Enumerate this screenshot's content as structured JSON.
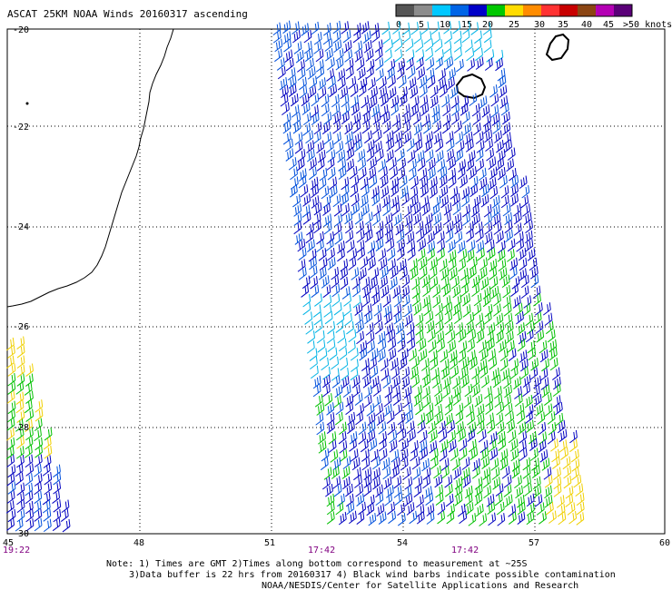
{
  "title": "ASCAT 25KM NOAA Winds 20160317 ascending",
  "legend": {
    "ticks": [
      "0",
      "5",
      "10",
      "15",
      "20",
      "25",
      "30",
      "35",
      "40",
      "45",
      ">50 knots"
    ],
    "colors": [
      "#555555",
      "#8c8c8c",
      "#00c8ff",
      "#0064e6",
      "#0000c8",
      "#00c800",
      "#ffdc00",
      "#ff8c00",
      "#ff3232",
      "#c80000",
      "#8b4513",
      "#b400b4",
      "#5a0078"
    ]
  },
  "axes": {
    "lat_labels": [
      "-20",
      "-22",
      "-24",
      "-26",
      "-28",
      "-30"
    ],
    "lon_labels": [
      "45",
      "48",
      "51",
      "54",
      "57",
      "60"
    ],
    "time_labels": [
      "19:22",
      "17:42",
      "17:42"
    ]
  },
  "notes": [
    "Note: 1) Times are GMT 2)Times along bottom correspond to measurement at ~25S",
    "3)Data buffer is 22 hrs from 20160317 4) Black wind barbs indicate possible contamination",
    "NOAA/NESDIS/Center for Satellite Applications and Research"
  ],
  "barb_colors": {
    "light_blue": "#00b4e6",
    "mid_blue": "#0050dc",
    "dark_blue": "#0000c0",
    "green": "#00c000",
    "yellow": "#f0d000"
  },
  "coast_color": "#000000"
}
